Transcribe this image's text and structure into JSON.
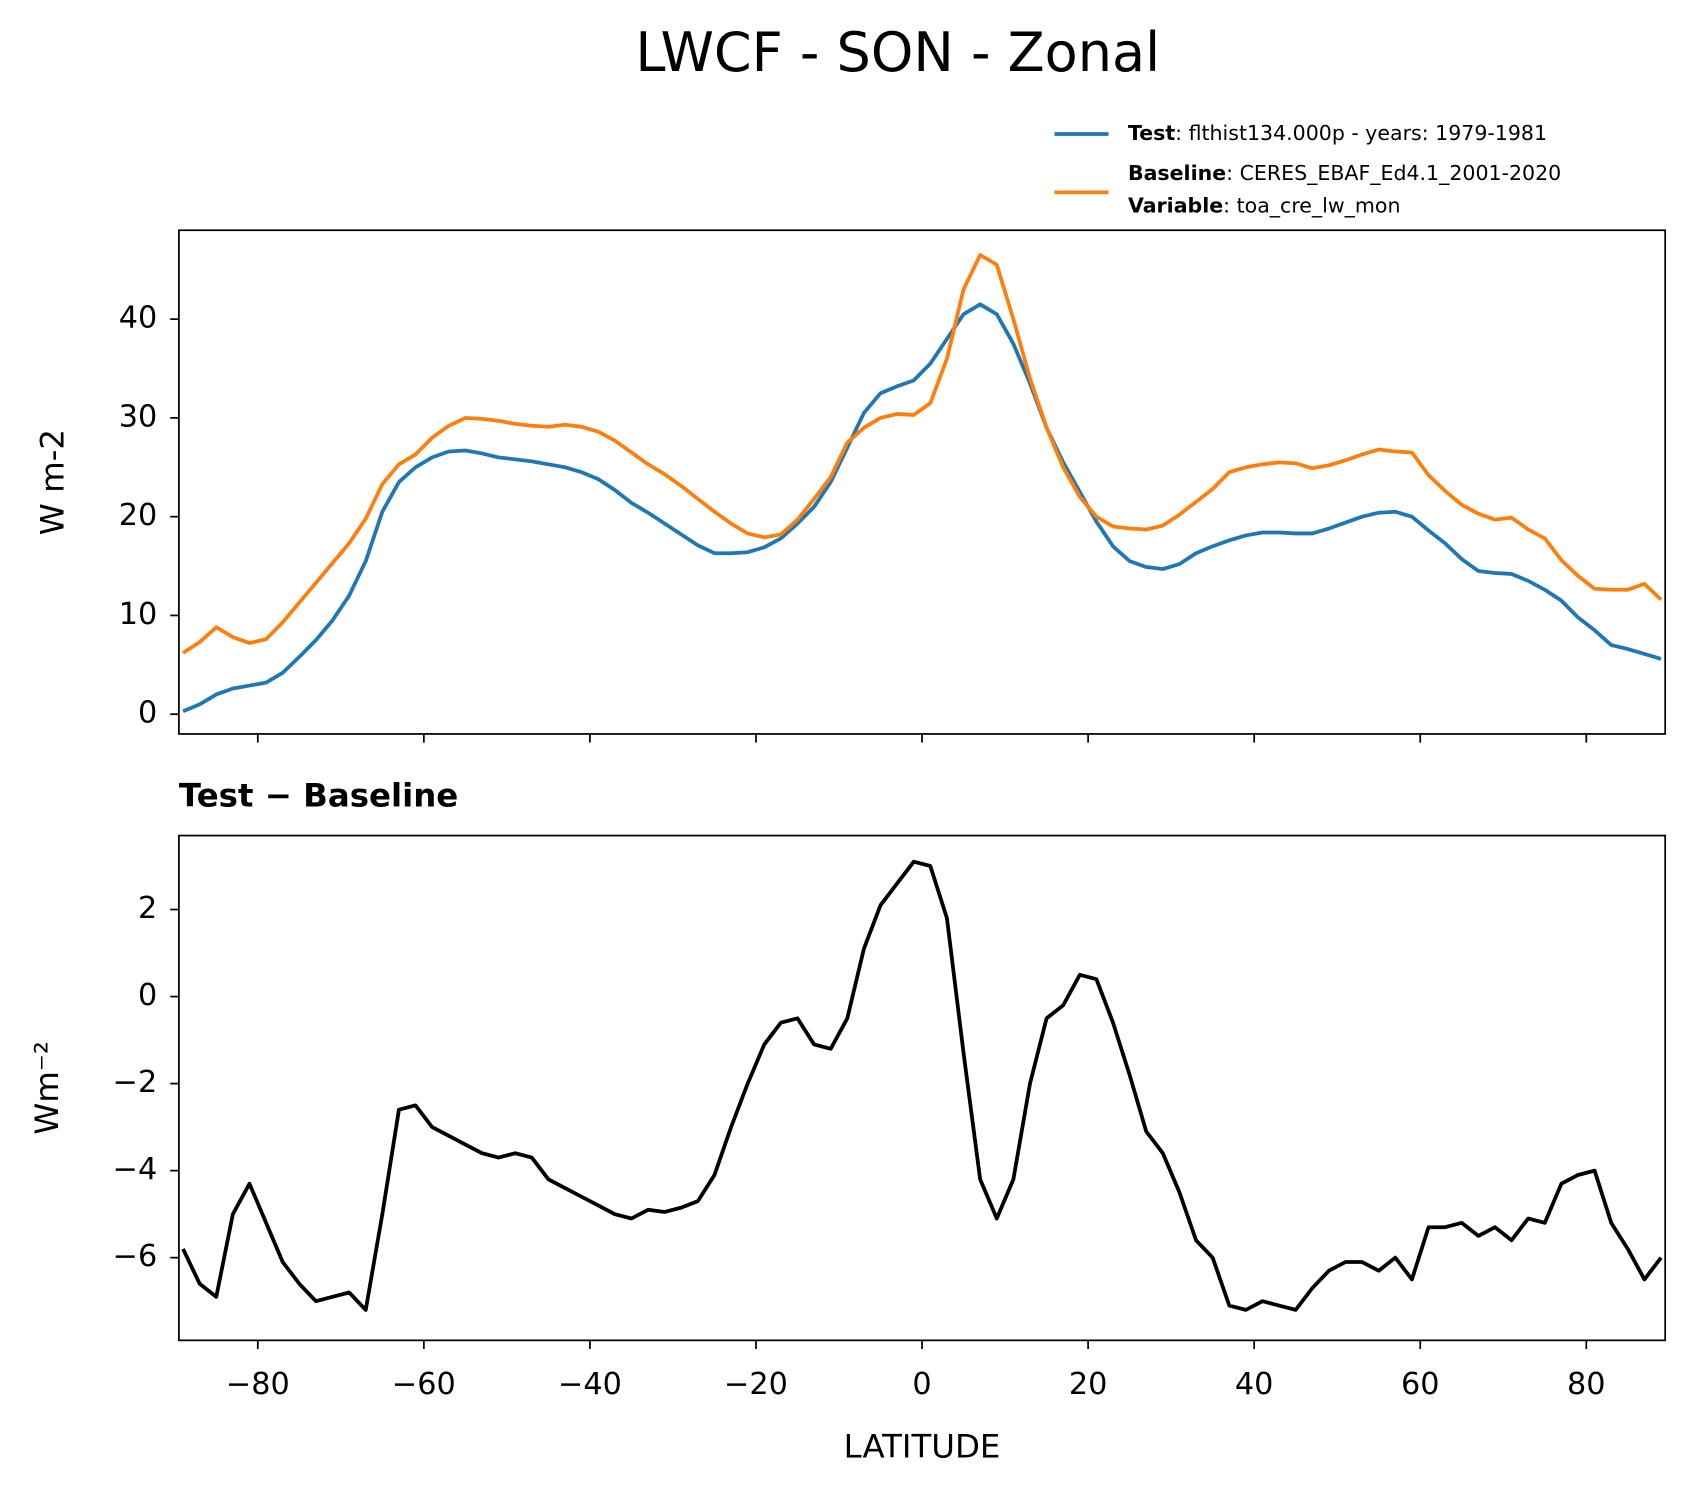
{
  "title": "LWCF - SON - Zonal",
  "chart_data": [
    {
      "type": "line",
      "ylabel": "W m-2",
      "x": [
        -89,
        -87,
        -85,
        -83,
        -81,
        -79,
        -77,
        -75,
        -73,
        -71,
        -69,
        -67,
        -65,
        -63,
        -61,
        -59,
        -57,
        -55,
        -53,
        -51,
        -49,
        -47,
        -45,
        -43,
        -41,
        -39,
        -37,
        -35,
        -33,
        -31,
        -29,
        -27,
        -25,
        -23,
        -21,
        -19,
        -17,
        -15,
        -13,
        -11,
        -9,
        -7,
        -5,
        -3,
        -1,
        1,
        3,
        5,
        7,
        9,
        11,
        13,
        15,
        17,
        19,
        21,
        23,
        25,
        27,
        29,
        31,
        33,
        35,
        37,
        39,
        41,
        43,
        45,
        47,
        49,
        51,
        53,
        55,
        57,
        59,
        61,
        63,
        65,
        67,
        69,
        71,
        73,
        75,
        77,
        79,
        81,
        83,
        85,
        87,
        89
      ],
      "series": [
        {
          "name": "Test",
          "description": ": flthist134.000p - years: 1979-1981",
          "color": "#1f77b4",
          "values": [
            0.3,
            1,
            2,
            2.6,
            2.9,
            3.2,
            4.2,
            5.8,
            7.5,
            9.5,
            12,
            15.5,
            20.5,
            23.5,
            25,
            26,
            26.6,
            26.7,
            26.4,
            26,
            25.8,
            25.6,
            25.3,
            25,
            24.5,
            23.8,
            22.7,
            21.4,
            20.4,
            19.3,
            18.2,
            17.1,
            16.3,
            16.3,
            16.4,
            16.9,
            17.8,
            19.3,
            21,
            23.5,
            27,
            30.5,
            32.5,
            33.2,
            33.8,
            35.5,
            38,
            40.5,
            41.5,
            40.5,
            37.5,
            33.5,
            29,
            25.5,
            22.5,
            19.5,
            17,
            15.5,
            14.9,
            14.7,
            15.2,
            16.3,
            17,
            17.6,
            18.1,
            18.4,
            18.4,
            18.3,
            18.3,
            18.8,
            19.4,
            20,
            20.4,
            20.5,
            20,
            18.6,
            17.3,
            15.7,
            14.5,
            14.3,
            14.2,
            13.5,
            12.6,
            11.5,
            9.8,
            8.5,
            7,
            6.6,
            6.1,
            5.6
          ]
        },
        {
          "name": "Baseline",
          "description": ": CERES_EBAF_Ed4.1_2001-2020",
          "color": "#ff7f0e",
          "values": [
            6.2,
            7.3,
            8.8,
            7.8,
            7.2,
            7.6,
            9.3,
            11.3,
            13.3,
            15.3,
            17.3,
            19.8,
            23.3,
            25.3,
            26.3,
            28,
            29.2,
            30,
            29.9,
            29.7,
            29.4,
            29.2,
            29.1,
            29.3,
            29.1,
            28.6,
            27.7,
            26.5,
            25.3,
            24.3,
            23.1,
            21.8,
            20.5,
            19.3,
            18.3,
            17.9,
            18.2,
            19.7,
            21.8,
            24,
            27.5,
            29,
            30,
            30.4,
            30.3,
            31.5,
            36,
            43,
            46.5,
            45.5,
            40,
            34,
            29,
            25,
            22,
            20,
            19,
            18.8,
            18.7,
            19.1,
            20.2,
            21.5,
            22.8,
            24.5,
            25,
            25.3,
            25.5,
            25.4,
            24.9,
            25.2,
            25.7,
            26.3,
            26.8,
            26.6,
            26.5,
            24.2,
            22.6,
            21.2,
            20.3,
            19.7,
            19.9,
            18.7,
            17.8,
            15.6,
            14,
            12.7,
            12.6,
            12.6,
            13.2,
            11.6
          ]
        }
      ],
      "variable": {
        "name": "Variable",
        "description": ": toa_cre_lw_mon"
      },
      "xlim": [
        -89.5,
        89.5
      ],
      "xticks": [
        -80,
        -60,
        -40,
        -20,
        0,
        20,
        40,
        60,
        80
      ],
      "xtick_labels": false,
      "ylim": [
        -2,
        49
      ],
      "yticks": [
        0,
        10,
        20,
        30,
        40
      ]
    },
    {
      "type": "line",
      "title": "Test − Baseline",
      "xlabel": "LATITUDE",
      "ylabel": "Wm⁻²",
      "x": [
        -89,
        -87,
        -85,
        -83,
        -81,
        -79,
        -77,
        -75,
        -73,
        -71,
        -69,
        -67,
        -65,
        -63,
        -61,
        -59,
        -57,
        -55,
        -53,
        -51,
        -49,
        -47,
        -45,
        -43,
        -41,
        -39,
        -37,
        -35,
        -33,
        -31,
        -29,
        -27,
        -25,
        -23,
        -21,
        -19,
        -17,
        -15,
        -13,
        -11,
        -9,
        -7,
        -5,
        -3,
        -1,
        1,
        3,
        5,
        7,
        9,
        11,
        13,
        15,
        17,
        19,
        21,
        23,
        25,
        27,
        29,
        31,
        33,
        35,
        37,
        39,
        41,
        43,
        45,
        47,
        49,
        51,
        53,
        55,
        57,
        59,
        61,
        63,
        65,
        67,
        69,
        71,
        73,
        75,
        77,
        79,
        81,
        83,
        85,
        87,
        89
      ],
      "series": [
        {
          "color": "#000000",
          "values": [
            -5.8,
            -6.6,
            -6.9,
            -5,
            -4.3,
            -5.2,
            -6.1,
            -6.6,
            -7,
            -6.9,
            -6.8,
            -7.2,
            -5,
            -2.6,
            -2.5,
            -3,
            -3.2,
            -3.4,
            -3.6,
            -3.7,
            -3.6,
            -3.7,
            -4.2,
            -4.4,
            -4.6,
            -4.8,
            -5,
            -5.1,
            -4.9,
            -4.95,
            -4.85,
            -4.7,
            -4.1,
            -3,
            -2,
            -1.1,
            -0.6,
            -0.5,
            -1.1,
            -1.2,
            -0.5,
            1.1,
            2.1,
            2.6,
            3.1,
            3,
            1.8,
            -1.3,
            -4.2,
            -5.1,
            -4.2,
            -2,
            -0.5,
            -0.2,
            0.5,
            0.4,
            -0.6,
            -1.8,
            -3.1,
            -3.6,
            -4.5,
            -5.6,
            -6,
            -7.1,
            -7.2,
            -7,
            -7.1,
            -7.2,
            -6.7,
            -6.3,
            -6.1,
            -6.1,
            -6.3,
            -6,
            -6.5,
            -5.3,
            -5.3,
            -5.2,
            -5.5,
            -5.3,
            -5.6,
            -5.1,
            -5.2,
            -4.3,
            -4.1,
            -4,
            -5.2,
            -5.8,
            -6.5,
            -6
          ]
        }
      ],
      "xlim": [
        -89.5,
        89.5
      ],
      "xticks": [
        {
          "value": -80,
          "label": "−80"
        },
        {
          "value": -60,
          "label": "−60"
        },
        {
          "value": -40,
          "label": "−40"
        },
        {
          "value": -20,
          "label": "−20"
        },
        0,
        20,
        40,
        60,
        80
      ],
      "ylim": [
        -7.9,
        3.7
      ],
      "yticks": [
        {
          "value": -6,
          "label": "−6"
        },
        {
          "value": -4,
          "label": "−4"
        },
        {
          "value": -2,
          "label": "−2"
        },
        0,
        2
      ]
    }
  ]
}
